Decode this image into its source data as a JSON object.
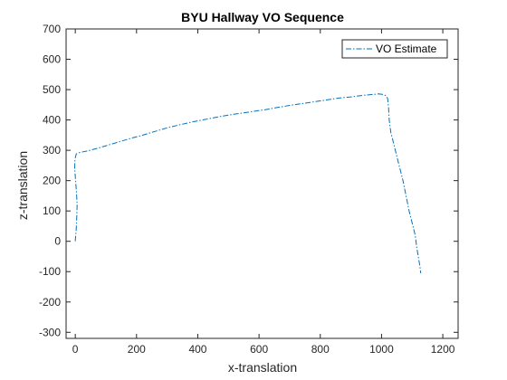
{
  "chart_data": {
    "type": "line",
    "title": "BYU Hallway VO Sequence",
    "xlabel": "x-translation",
    "ylabel": "z-translation",
    "xlim": [
      -30,
      1250
    ],
    "ylim": [
      -320,
      700
    ],
    "xticks": [
      0,
      200,
      400,
      600,
      800,
      1000,
      1200
    ],
    "yticks": [
      -300,
      -200,
      -100,
      0,
      100,
      200,
      300,
      400,
      500,
      600,
      700
    ],
    "grid": false,
    "legend_position": "top-right",
    "line_style": "dash-dot",
    "series": [
      {
        "name": "VO Estimate",
        "color": "#0072BD",
        "x": [
          0,
          3,
          5,
          6,
          4,
          1,
          -2,
          -1,
          3,
          15,
          40,
          70,
          100,
          140,
          180,
          220,
          260,
          300,
          340,
          380,
          420,
          460,
          500,
          540,
          580,
          620,
          660,
          700,
          740,
          780,
          820,
          860,
          900,
          940,
          970,
          990,
          1005,
          1015,
          1020,
          1023,
          1025,
          1030,
          1040,
          1050,
          1060,
          1070,
          1080,
          1090,
          1100,
          1110,
          1115,
          1120,
          1125,
          1128
        ],
        "y": [
          0,
          40,
          80,
          120,
          160,
          200,
          240,
          270,
          288,
          293,
          298,
          306,
          315,
          327,
          339,
          350,
          362,
          374,
          384,
          393,
          401,
          409,
          416,
          422,
          428,
          434,
          441,
          448,
          454,
          460,
          466,
          472,
          476,
          481,
          484,
          486,
          484,
          480,
          470,
          440,
          400,
          360,
          320,
          280,
          240,
          200,
          150,
          100,
          60,
          20,
          -20,
          -50,
          -80,
          -105
        ]
      }
    ]
  }
}
